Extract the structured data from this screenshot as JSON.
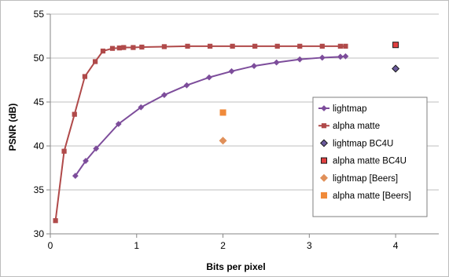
{
  "chart_data": {
    "type": "scatter",
    "title": "",
    "xlabel": "Bits per pixel",
    "ylabel": "PSNR (dB)",
    "xlim": [
      0,
      4.5
    ],
    "ylim": [
      30,
      55
    ],
    "xticks": [
      0,
      1,
      2,
      3,
      4
    ],
    "yticks": [
      30,
      35,
      40,
      45,
      50,
      55
    ],
    "grid": "horizontal",
    "legend_position": "right",
    "series": [
      {
        "name": "lightmap",
        "style": "line",
        "marker": "diamond",
        "color": "#7d4d9b",
        "x": [
          0.29,
          0.41,
          0.53,
          0.79,
          1.05,
          1.32,
          1.58,
          1.84,
          2.1,
          2.36,
          2.62,
          2.89,
          3.15,
          3.36,
          3.42
        ],
        "y": [
          36.6,
          38.3,
          39.7,
          42.5,
          44.4,
          45.8,
          46.9,
          47.8,
          48.5,
          49.1,
          49.5,
          49.85,
          50.05,
          50.15,
          50.2
        ]
      },
      {
        "name": "alpha matte",
        "style": "line",
        "marker": "square",
        "color": "#b04a4a",
        "x": [
          0.06,
          0.16,
          0.28,
          0.4,
          0.52,
          0.61,
          0.72,
          0.8,
          0.85,
          0.96,
          1.06,
          1.32,
          1.59,
          1.85,
          2.11,
          2.37,
          2.63,
          2.89,
          3.15,
          3.36,
          3.42
        ],
        "y": [
          31.5,
          39.4,
          43.6,
          47.9,
          49.6,
          50.8,
          51.1,
          51.15,
          51.2,
          51.2,
          51.25,
          51.3,
          51.35,
          51.35,
          51.35,
          51.35,
          51.35,
          51.35,
          51.35,
          51.35,
          51.35
        ]
      },
      {
        "name": "lightmap BC4U",
        "style": "marker",
        "marker": "diamond",
        "color": "#6a5a9c",
        "x": [
          4.0
        ],
        "y": [
          48.8
        ]
      },
      {
        "name": "alpha matte BC4U",
        "style": "marker",
        "marker": "square",
        "color": "#e04040",
        "x": [
          4.0
        ],
        "y": [
          51.5
        ]
      },
      {
        "name": "lightmap [Beers]",
        "style": "marker",
        "marker": "diamond",
        "color": "#e0905a",
        "x": [
          2.0
        ],
        "y": [
          40.6
        ]
      },
      {
        "name": "alpha matte [Beers]",
        "style": "marker",
        "marker": "square",
        "color": "#f08a3a",
        "x": [
          2.0
        ],
        "y": [
          43.8
        ]
      }
    ]
  }
}
